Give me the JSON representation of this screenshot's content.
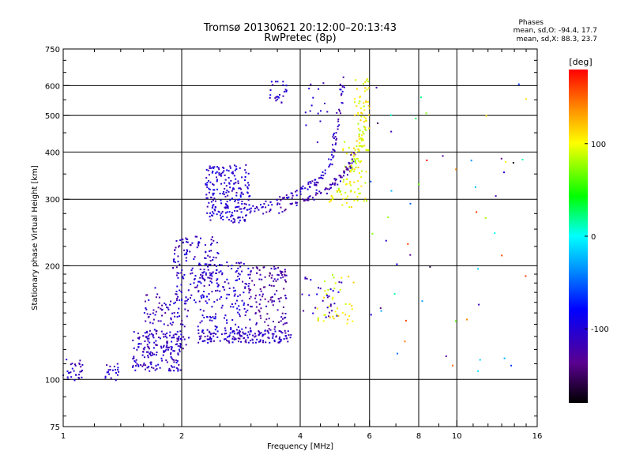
{
  "header": {
    "title_line1": "Tromsø 20130621 20:12:00–20:13:43",
    "title_line2": "RwPretec (8p)",
    "phases_title": "Phases",
    "phases_o": "mean, sd,O: -94.4, 17.7",
    "phases_x": "mean, sd,X:  88.3, 23.7"
  },
  "chart_data": {
    "type": "scatter",
    "title": "Tromsø 20130621 20:12:00–20:13:43",
    "subtitle": "RwPretec (8p)",
    "xlabel": "Frequency [MHz]",
    "ylabel": "Stationary phase Virtual Height [km]",
    "xscale": "log",
    "yscale": "log",
    "xlim": [
      1,
      16
    ],
    "ylim": [
      75,
      750
    ],
    "xticks": [
      1,
      2,
      4,
      6,
      8,
      10,
      16
    ],
    "yticks": [
      75,
      100,
      200,
      300,
      400,
      500,
      600,
      750
    ],
    "grid": true,
    "colorbar": {
      "label": "[deg]",
      "range": [
        -180,
        180
      ],
      "ticks": [
        -100,
        0,
        100
      ]
    },
    "series": [
      {
        "clusters": [
          {
            "xr": [
              1.0,
              1.12
            ],
            "yr": [
              98,
              115
            ],
            "n": 30,
            "p": -110
          },
          {
            "xr": [
              1.28,
              1.4
            ],
            "yr": [
              98,
              110
            ],
            "n": 20,
            "p": -110
          },
          {
            "xr": [
              1.5,
              2.0
            ],
            "yr": [
              105,
              135
            ],
            "n": 170,
            "p": -110
          },
          {
            "xr": [
              1.6,
              2.1
            ],
            "yr": [
              120,
              175
            ],
            "n": 110,
            "p": -115
          },
          {
            "xr": [
              1.9,
              2.5
            ],
            "yr": [
              160,
              240
            ],
            "n": 150,
            "p": -110
          },
          {
            "xr": [
              2.2,
              3.8
            ],
            "yr": [
              125,
              135
            ],
            "n": 150,
            "p": -110
          },
          {
            "xr": [
              2.2,
              3.0
            ],
            "yr": [
              130,
              205
            ],
            "n": 160,
            "p": -105
          },
          {
            "xr": [
              2.9,
              3.7
            ],
            "yr": [
              135,
              200
            ],
            "n": 130,
            "p": -125
          },
          {
            "xr": [
              2.3,
              3.0
            ],
            "yr": [
              260,
              370
            ],
            "n": 220,
            "p": -105
          },
          {
            "xr": [
              3.3,
              3.7
            ],
            "yr": [
              540,
              615
            ],
            "n": 25,
            "p": -105
          },
          {
            "xr": [
              4.0,
              5.1
            ],
            "yr": [
              145,
              190
            ],
            "n": 30,
            "p": -110
          },
          {
            "xr": [
              4.1,
              4.7
            ],
            "yr": [
              420,
              610
            ],
            "n": 15,
            "p": -110
          },
          {
            "xr": [
              4.4,
              5.5
            ],
            "yr": [
              140,
              190
            ],
            "n": 40,
            "p": 100
          },
          {
            "xr": [
              5.1,
              5.9
            ],
            "yr": [
              285,
              430
            ],
            "n": 55,
            "p": 100
          },
          {
            "xr": [
              5.5,
              6.0
            ],
            "yr": [
              400,
              640
            ],
            "n": 60,
            "p": 100
          },
          {
            "xr": [
              6.0,
              15.0
            ],
            "yr": [
              100,
              620
            ],
            "n": 55,
            "p": 0
          }
        ],
        "traces": [
          {
            "x": [
              3.0,
              3.6,
              4.1,
              4.5,
              4.8,
              5.0,
              5.15
            ],
            "y": [
              280,
              300,
              320,
              340,
              380,
              480,
              640
            ],
            "n": 120,
            "p": -110
          },
          {
            "x": [
              3.2,
              3.8,
              4.3,
              4.7,
              5.0,
              5.3,
              5.5
            ],
            "y": [
              270,
              290,
              305,
              320,
              340,
              360,
              400
            ],
            "n": 90,
            "p": -120
          },
          {
            "x": [
              4.8,
              5.1,
              5.4,
              5.7,
              5.9
            ],
            "y": [
              300,
              320,
              360,
              420,
              520
            ],
            "n": 50,
            "p": 95
          }
        ]
      }
    ]
  }
}
